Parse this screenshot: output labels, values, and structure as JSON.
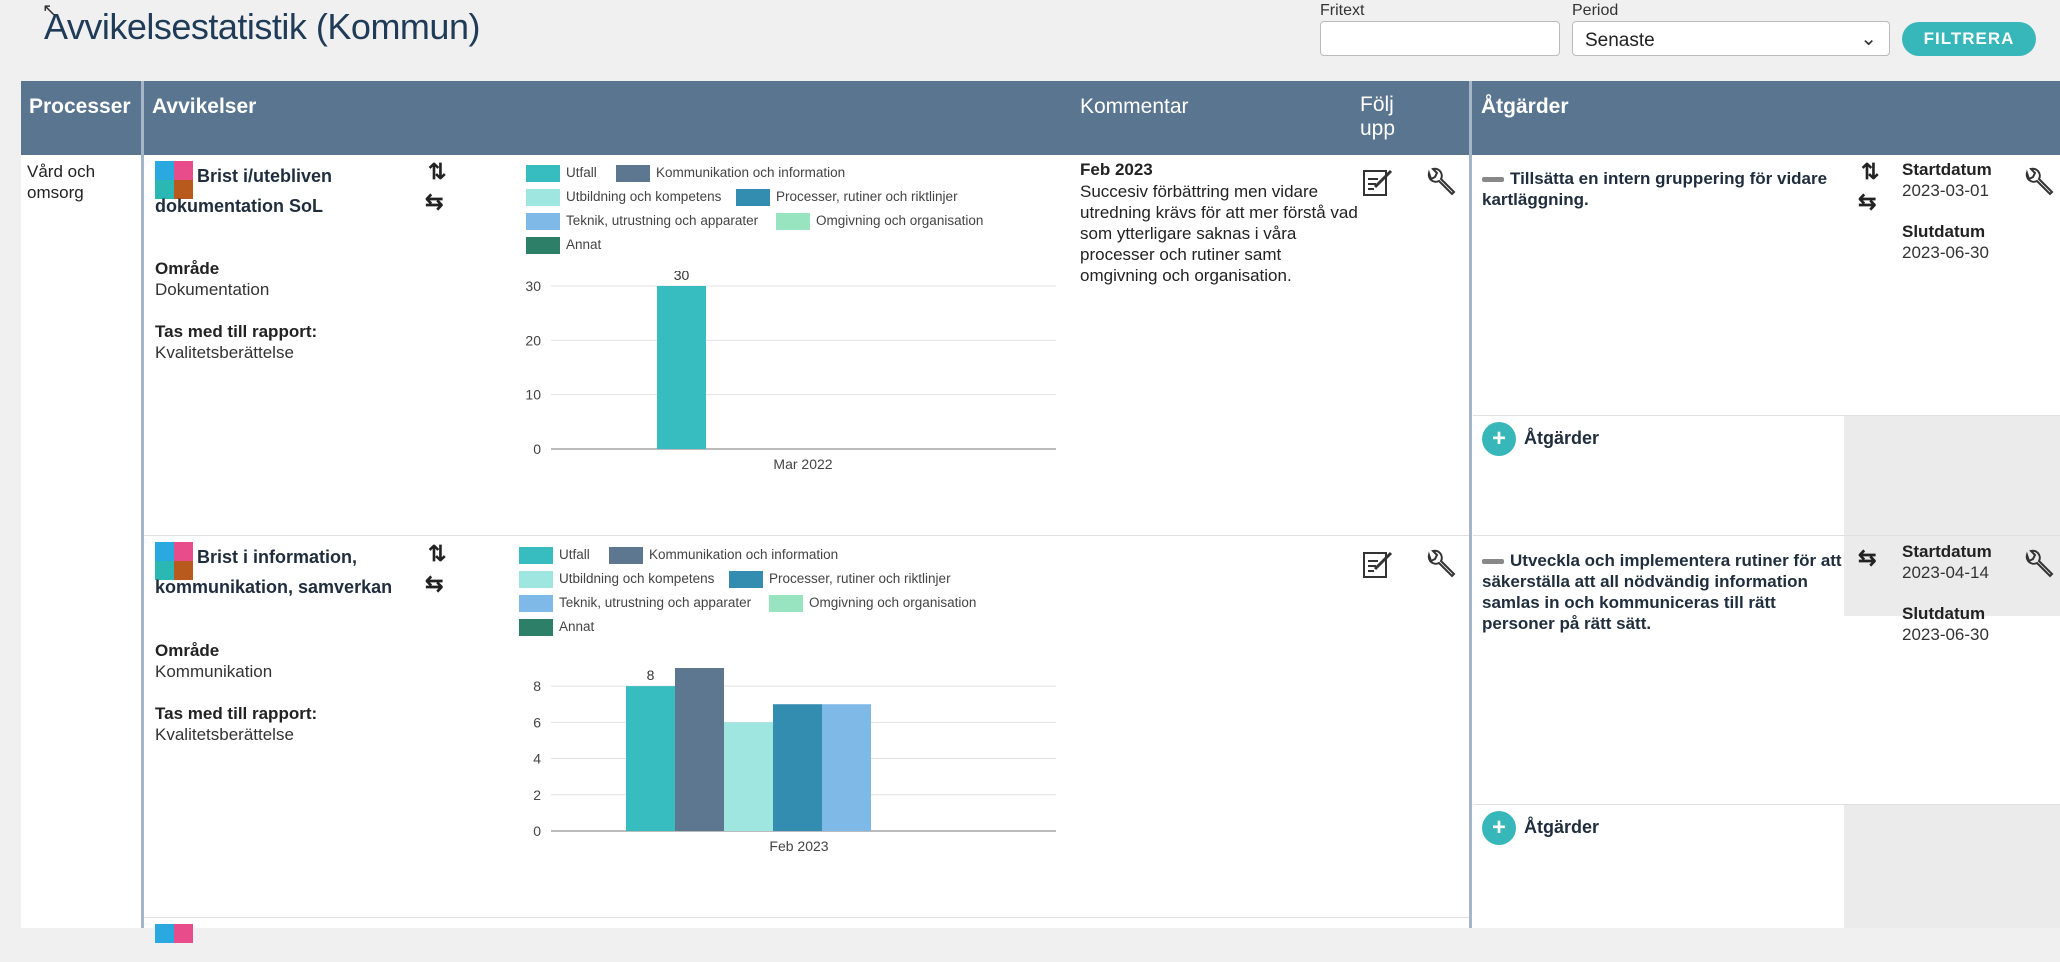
{
  "page": {
    "title": "Avvikelsestatistik (Kommun)"
  },
  "filters": {
    "fritext_label": "Fritext",
    "fritext_value": "",
    "period_label": "Period",
    "period_value": "Senaste",
    "filter_button": "FILTRERA"
  },
  "table": {
    "headers": {
      "processer": "Processer",
      "avvikelser": "Avvikelser",
      "kommentar": "Kommentar",
      "folj_upp": "Följ upp",
      "atgarder": "Åtgärder"
    },
    "process_name": "Vård och omsorg",
    "area_label": "Område",
    "report_label": "Tas med till rapport:",
    "start_label": "Startdatum",
    "end_label": "Slutdatum",
    "add_atgard_label": "Åtgärder"
  },
  "legend": [
    "Utfall",
    "Kommunikation och information",
    "Utbildning och kompetens",
    "Processer, rutiner och riktlinjer",
    "Teknik, utrustning och apparater",
    "Omgivning och organisation",
    "Annat"
  ],
  "colors": {
    "Utfall": "#37bdbf",
    "Kommunikation och information": "#5e7790",
    "Utbildning och kompetens": "#9fe6e0",
    "Processer, rutiner och riktlinjer": "#338db0",
    "Teknik, utrustning och apparater": "#7fb9e8",
    "Omgivning och organisation": "#99e4c0",
    "Annat": "#2e7f68",
    "header": "#59758f",
    "accent": "#37b7b9"
  },
  "rows": [
    {
      "title": "Brist i/utebliven dokumentation SoL",
      "area": "Dokumentation",
      "report": "Kvalitetsberättelse",
      "comment_date": "Feb 2023",
      "comment_text": "Succesiv förbättring men vidare utredning krävs för att mer förstå vad som ytterligare saknas i våra processer och rutiner samt omgivning och organisation.",
      "atgard": {
        "title": "Tillsätta en intern gruppering för vidare kartläggning.",
        "start": "2023-03-01",
        "end": "2023-06-30"
      }
    },
    {
      "title": "Brist i information, kommunikation, samverkan",
      "area": "Kommunikation",
      "report": "Kvalitetsberättelse",
      "comment_date": "",
      "comment_text": "",
      "atgard": {
        "title": "Utveckla och implementera rutiner för att säkerställa att all nödvändig information samlas in och kommuniceras till rätt personer på rätt sätt.",
        "start": "2023-04-14",
        "end": "2023-06-30"
      }
    }
  ],
  "chart_data": [
    {
      "type": "bar",
      "categories": [
        "Mar 2022"
      ],
      "series": [
        {
          "name": "Utfall",
          "values": [
            30
          ]
        }
      ],
      "data_labels": [
        "30"
      ],
      "ylim": [
        0,
        30
      ],
      "yticks": [
        0,
        10,
        20,
        30
      ],
      "grid": true,
      "legend_position": "top"
    },
    {
      "type": "bar",
      "categories": [
        "Feb 2023"
      ],
      "series": [
        {
          "name": "Utfall",
          "values": [
            8
          ]
        },
        {
          "name": "Kommunikation och information",
          "values": [
            9
          ]
        },
        {
          "name": "Utbildning och kompetens",
          "values": [
            6
          ]
        },
        {
          "name": "Processer, rutiner och riktlinjer",
          "values": [
            7
          ]
        },
        {
          "name": "Teknik, utrustning och apparater",
          "values": [
            7
          ]
        }
      ],
      "data_labels": [
        "8"
      ],
      "ylim": [
        0,
        9
      ],
      "yticks": [
        0,
        2,
        4,
        6,
        8
      ],
      "grid": true,
      "legend_position": "top"
    }
  ]
}
